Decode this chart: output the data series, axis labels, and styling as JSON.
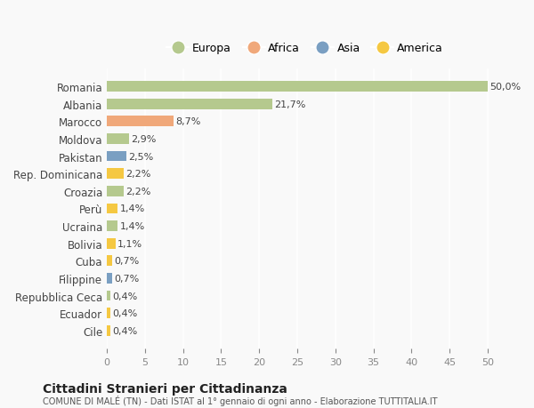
{
  "categories": [
    "Romania",
    "Albania",
    "Marocco",
    "Moldova",
    "Pakistan",
    "Rep. Dominicana",
    "Croazia",
    "Perù",
    "Ucraina",
    "Bolivia",
    "Cuba",
    "Filippine",
    "Repubblica Ceca",
    "Ecuador",
    "Cile"
  ],
  "values": [
    50.0,
    21.7,
    8.7,
    2.9,
    2.5,
    2.2,
    2.2,
    1.4,
    1.4,
    1.1,
    0.7,
    0.7,
    0.4,
    0.4,
    0.4
  ],
  "labels": [
    "50,0%",
    "21,7%",
    "8,7%",
    "2,9%",
    "2,5%",
    "2,2%",
    "2,2%",
    "1,4%",
    "1,4%",
    "1,1%",
    "0,7%",
    "0,7%",
    "0,4%",
    "0,4%",
    "0,4%"
  ],
  "colors": [
    "#b5c98e",
    "#b5c98e",
    "#f0a87a",
    "#b5c98e",
    "#7a9fc2",
    "#f5c842",
    "#b5c98e",
    "#f5c842",
    "#b5c98e",
    "#f5c842",
    "#f5c842",
    "#7a9fc2",
    "#b5c98e",
    "#f5c842",
    "#f5c842"
  ],
  "continent_colors": {
    "Europa": "#b5c98e",
    "Africa": "#f0a87a",
    "Asia": "#7a9fc2",
    "America": "#f5c842"
  },
  "title_main": "Cittadini Stranieri per Cittadinanza",
  "title_sub": "COMUNE DI MALÉ (TN) - Dati ISTAT al 1° gennaio di ogni anno - Elaborazione TUTTITALIA.IT",
  "xlim": [
    0,
    52
  ],
  "xticks": [
    0,
    5,
    10,
    15,
    20,
    25,
    30,
    35,
    40,
    45,
    50
  ],
  "background_color": "#f9f9f9",
  "grid_color": "#ffffff"
}
